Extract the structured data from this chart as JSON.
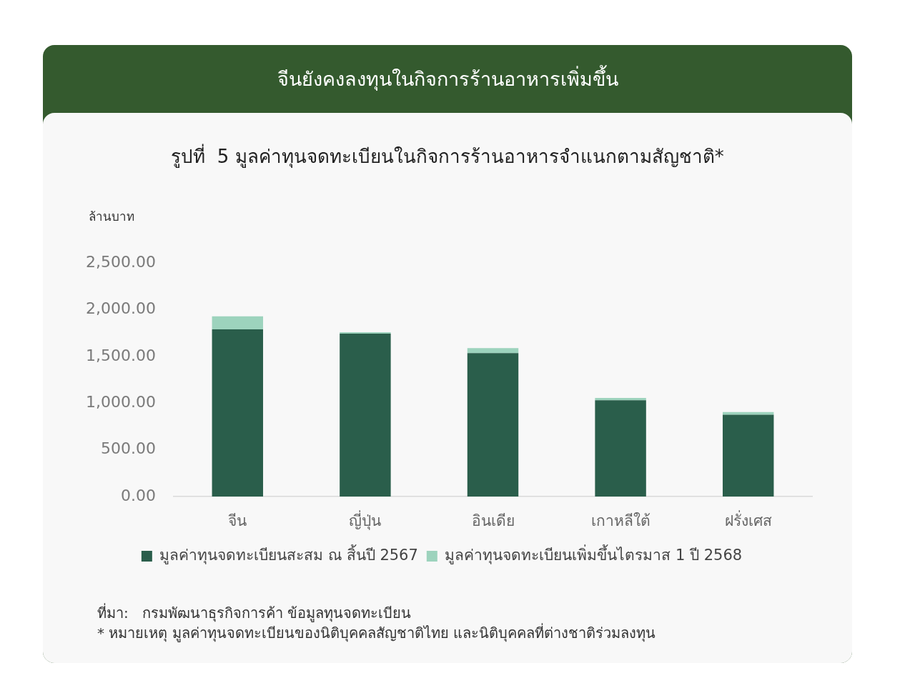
{
  "chart_data": {
    "type": "bar",
    "title": "จีนยังคงลงทุนในกิจการร้านอาหารเพิ่มขึ้น",
    "subtitle": "รูปที่  5 มูลค่าทุนจดทะเบียนในกิจการร้านอาหารจำแนกตามสัญชาติ*",
    "ylabel": "ล้านบาท",
    "categories": [
      "จีน",
      "ญี่ปุ่น",
      "อินเดีย",
      "เกาหลีใต้",
      "ฝรั่งเศส"
    ],
    "series": [
      {
        "name": "มูลค่าทุนจดทะเบียนสะสม ณ สิ้นปี 2567",
        "color": "#2a5e4b",
        "values": [
          1790,
          1745,
          1535,
          1030,
          875
        ]
      },
      {
        "name": "มูลค่าทุนจดทะเบียนเพิ่มขึ้นไตรมาส 1 ปี 2568",
        "color": "#9dd3bd",
        "values": [
          140,
          15,
          55,
          25,
          30
        ]
      }
    ],
    "stacked": true,
    "ylim": [
      0,
      2500
    ],
    "yticks": [
      {
        "value": 0,
        "label": "0.00"
      },
      {
        "value": 500,
        "label": "500.00"
      },
      {
        "value": 1000,
        "label": "1,000.00"
      },
      {
        "value": 1500,
        "label": "1,500.00"
      },
      {
        "value": 2000,
        "label": "2,000.00"
      },
      {
        "value": 2500,
        "label": "2,500.00"
      }
    ],
    "grid": false,
    "legend": "bottom",
    "annotations": [
      "ที่มา:   กรมพัฒนาธุรกิจการค้า ข้อมูลทุนจดทะเบียน",
      "* หมายเหตุ มูลค่าทุนจดทะเบียนของนิติบุคคลสัญชาติไทย และนิติบุคคลที่ต่างชาติร่วมลงทุน"
    ]
  }
}
